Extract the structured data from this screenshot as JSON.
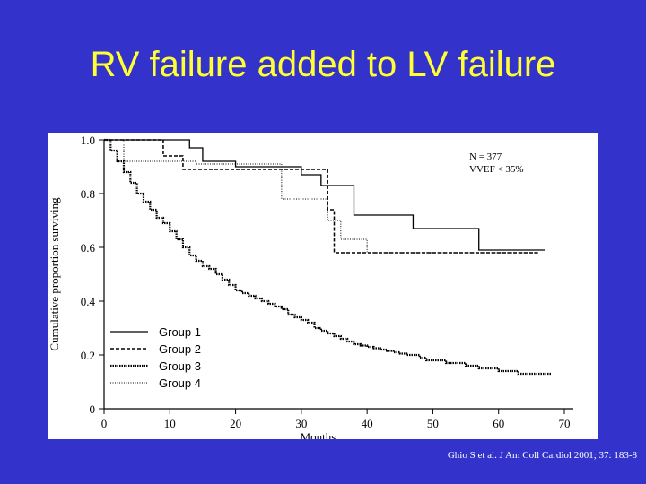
{
  "slide": {
    "title": "RV failure added to LV failure",
    "citation": "Ghio S et al.  J Am Coll Cardiol 2001; 37: 183-8"
  },
  "colors": {
    "background": "#3333cc",
    "title": "#ffff33",
    "citation": "#ffffff",
    "plot_background": "#ffffff",
    "ink": "#000000"
  },
  "chart_data": {
    "type": "line",
    "title": "",
    "xlabel": "Months",
    "ylabel": "Cumulative proportion surviving",
    "xlim": [
      0,
      70
    ],
    "ylim": [
      0,
      1.0
    ],
    "x_ticks": [
      0,
      10,
      20,
      30,
      40,
      50,
      60,
      70
    ],
    "x_tick_labels": [
      "0",
      "10",
      "20",
      "30",
      "40",
      "50",
      "60",
      "70"
    ],
    "y_ticks": [
      0,
      0.2,
      0.4,
      0.6,
      0.8,
      1.0
    ],
    "y_tick_labels": [
      "0",
      "0.2",
      "0.4",
      "0.6",
      "0.8",
      "1.0"
    ],
    "grid": false,
    "legend_position": "bottom-left",
    "annotations": [
      "N = 377",
      "VVEF < 35%"
    ],
    "step": true,
    "series": [
      {
        "name": "Group 1",
        "style": "solid",
        "x": [
          0,
          13,
          15,
          20,
          30,
          33,
          38,
          40,
          47,
          57,
          67
        ],
        "y": [
          1.0,
          0.97,
          0.92,
          0.9,
          0.87,
          0.83,
          0.72,
          0.72,
          0.67,
          0.59,
          0.59
        ]
      },
      {
        "name": "Group 2",
        "style": "dashed",
        "x": [
          0,
          9,
          12,
          14,
          34,
          35,
          38,
          66
        ],
        "y": [
          1.0,
          0.94,
          0.89,
          0.89,
          0.74,
          0.58,
          0.58,
          0.58
        ]
      },
      {
        "name": "Group 3",
        "style": "dotted",
        "x": [
          0,
          1,
          2,
          3,
          4,
          5,
          6,
          7,
          8,
          9,
          10,
          11,
          12,
          13,
          14,
          15,
          16,
          17,
          18,
          19,
          20,
          21,
          22,
          23,
          24,
          25,
          26,
          27,
          28,
          29,
          30,
          31,
          32,
          33,
          34,
          35,
          36,
          37,
          38,
          39,
          40,
          41,
          42,
          43,
          44,
          45,
          46,
          47,
          48,
          49,
          50,
          52,
          55,
          57,
          60,
          63,
          65,
          68
        ],
        "y": [
          1.0,
          0.96,
          0.92,
          0.88,
          0.84,
          0.8,
          0.77,
          0.74,
          0.71,
          0.69,
          0.66,
          0.63,
          0.6,
          0.57,
          0.55,
          0.53,
          0.52,
          0.5,
          0.48,
          0.46,
          0.44,
          0.43,
          0.42,
          0.41,
          0.4,
          0.39,
          0.38,
          0.37,
          0.35,
          0.34,
          0.33,
          0.32,
          0.3,
          0.29,
          0.28,
          0.27,
          0.26,
          0.25,
          0.24,
          0.235,
          0.23,
          0.225,
          0.22,
          0.215,
          0.21,
          0.205,
          0.2,
          0.2,
          0.19,
          0.18,
          0.18,
          0.17,
          0.16,
          0.15,
          0.14,
          0.13,
          0.13,
          0.13
        ]
      },
      {
        "name": "Group 4",
        "style": "dotted-thin",
        "x": [
          0,
          3,
          14,
          27,
          34,
          36,
          40,
          66
        ],
        "y": [
          1.0,
          0.92,
          0.91,
          0.78,
          0.7,
          0.63,
          0.58,
          0.58
        ]
      }
    ]
  }
}
